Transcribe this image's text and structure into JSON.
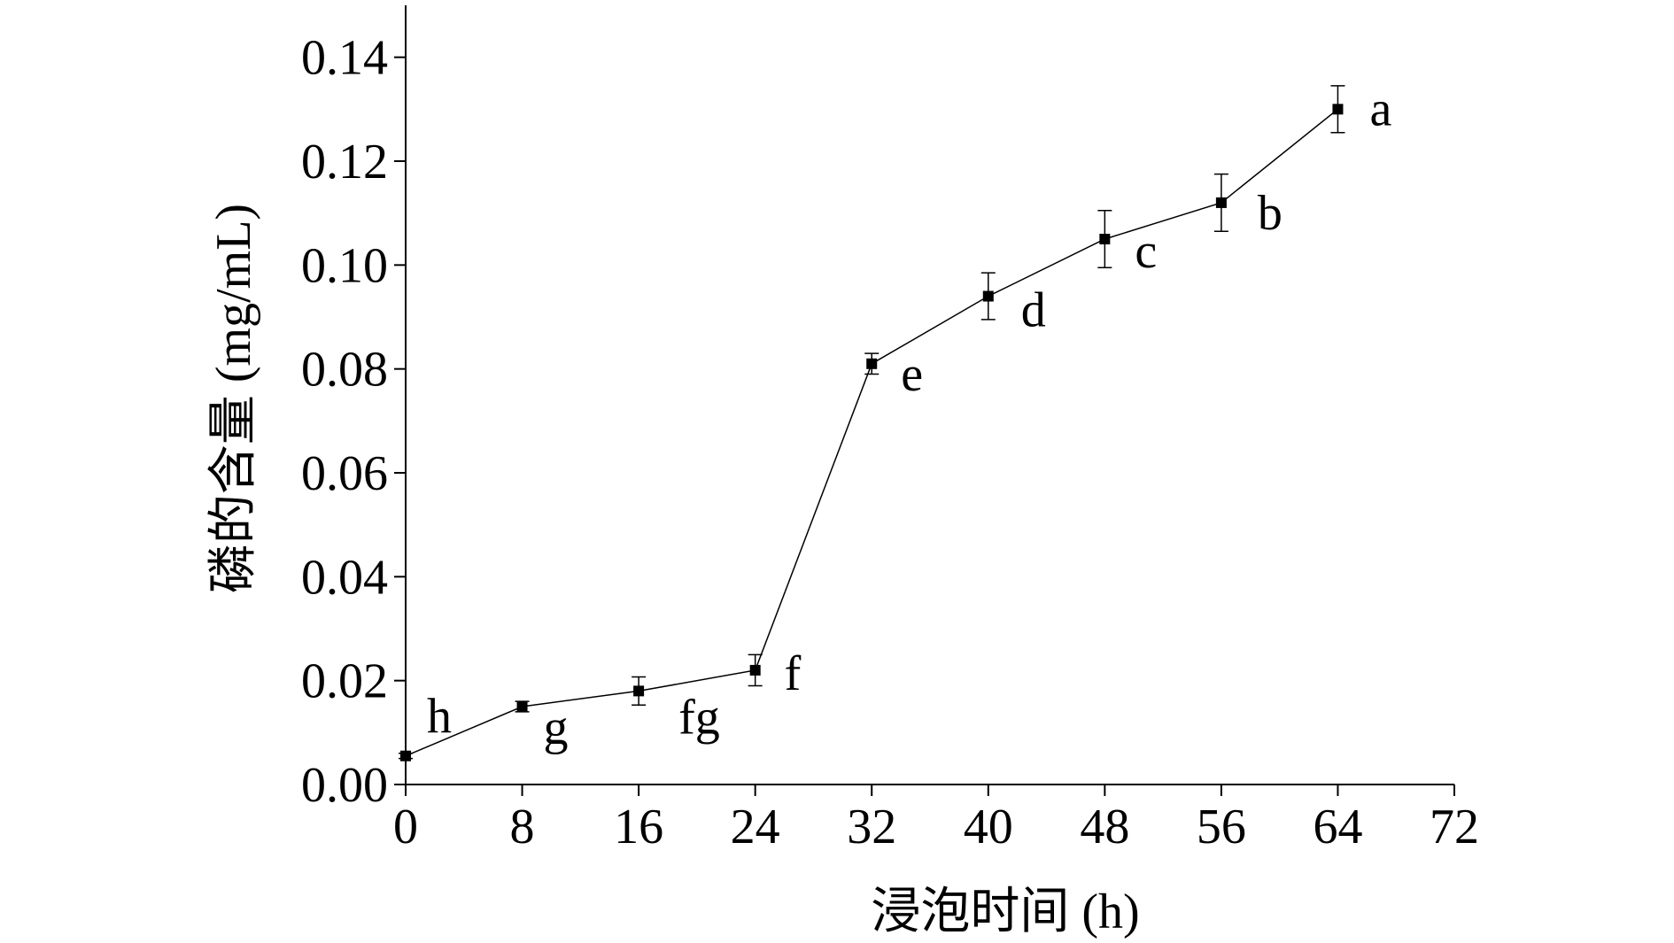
{
  "chart_data": {
    "type": "line",
    "x_label": "浸泡时间 (h)",
    "y_label": "磷的含量 (mg/mL)",
    "x": [
      0,
      8,
      16,
      24,
      32,
      40,
      48,
      56,
      64
    ],
    "series": [
      {
        "color": "#000000",
        "values": [
          0.0055,
          0.015,
          0.018,
          0.022,
          0.081,
          0.094,
          0.105,
          0.112,
          0.13
        ],
        "errors": [
          0.0005,
          0.001,
          0.0027,
          0.003,
          0.002,
          0.0045,
          0.0055,
          0.0055,
          0.0045
        ],
        "annotations": [
          "h",
          "g",
          "fg",
          "f",
          "e",
          "d",
          "c",
          "b",
          "a"
        ]
      }
    ],
    "xlim": [
      0,
      72
    ],
    "xticks": [
      0,
      8,
      16,
      24,
      32,
      40,
      48,
      56,
      64,
      72
    ],
    "ylim": [
      0,
      0.15
    ],
    "yticks": [
      {
        "value": 0,
        "label": "0.00"
      },
      {
        "value": 0.02,
        "label": "0.02"
      },
      {
        "value": 0.04,
        "label": "0.04"
      },
      {
        "value": 0.06,
        "label": "0.06"
      },
      {
        "value": 0.08,
        "label": "0.08"
      },
      {
        "value": 0.1,
        "label": "0.10"
      },
      {
        "value": 0.12,
        "label": "0.12"
      },
      {
        "value": 0.14,
        "label": "0.14"
      }
    ],
    "grid": false
  }
}
